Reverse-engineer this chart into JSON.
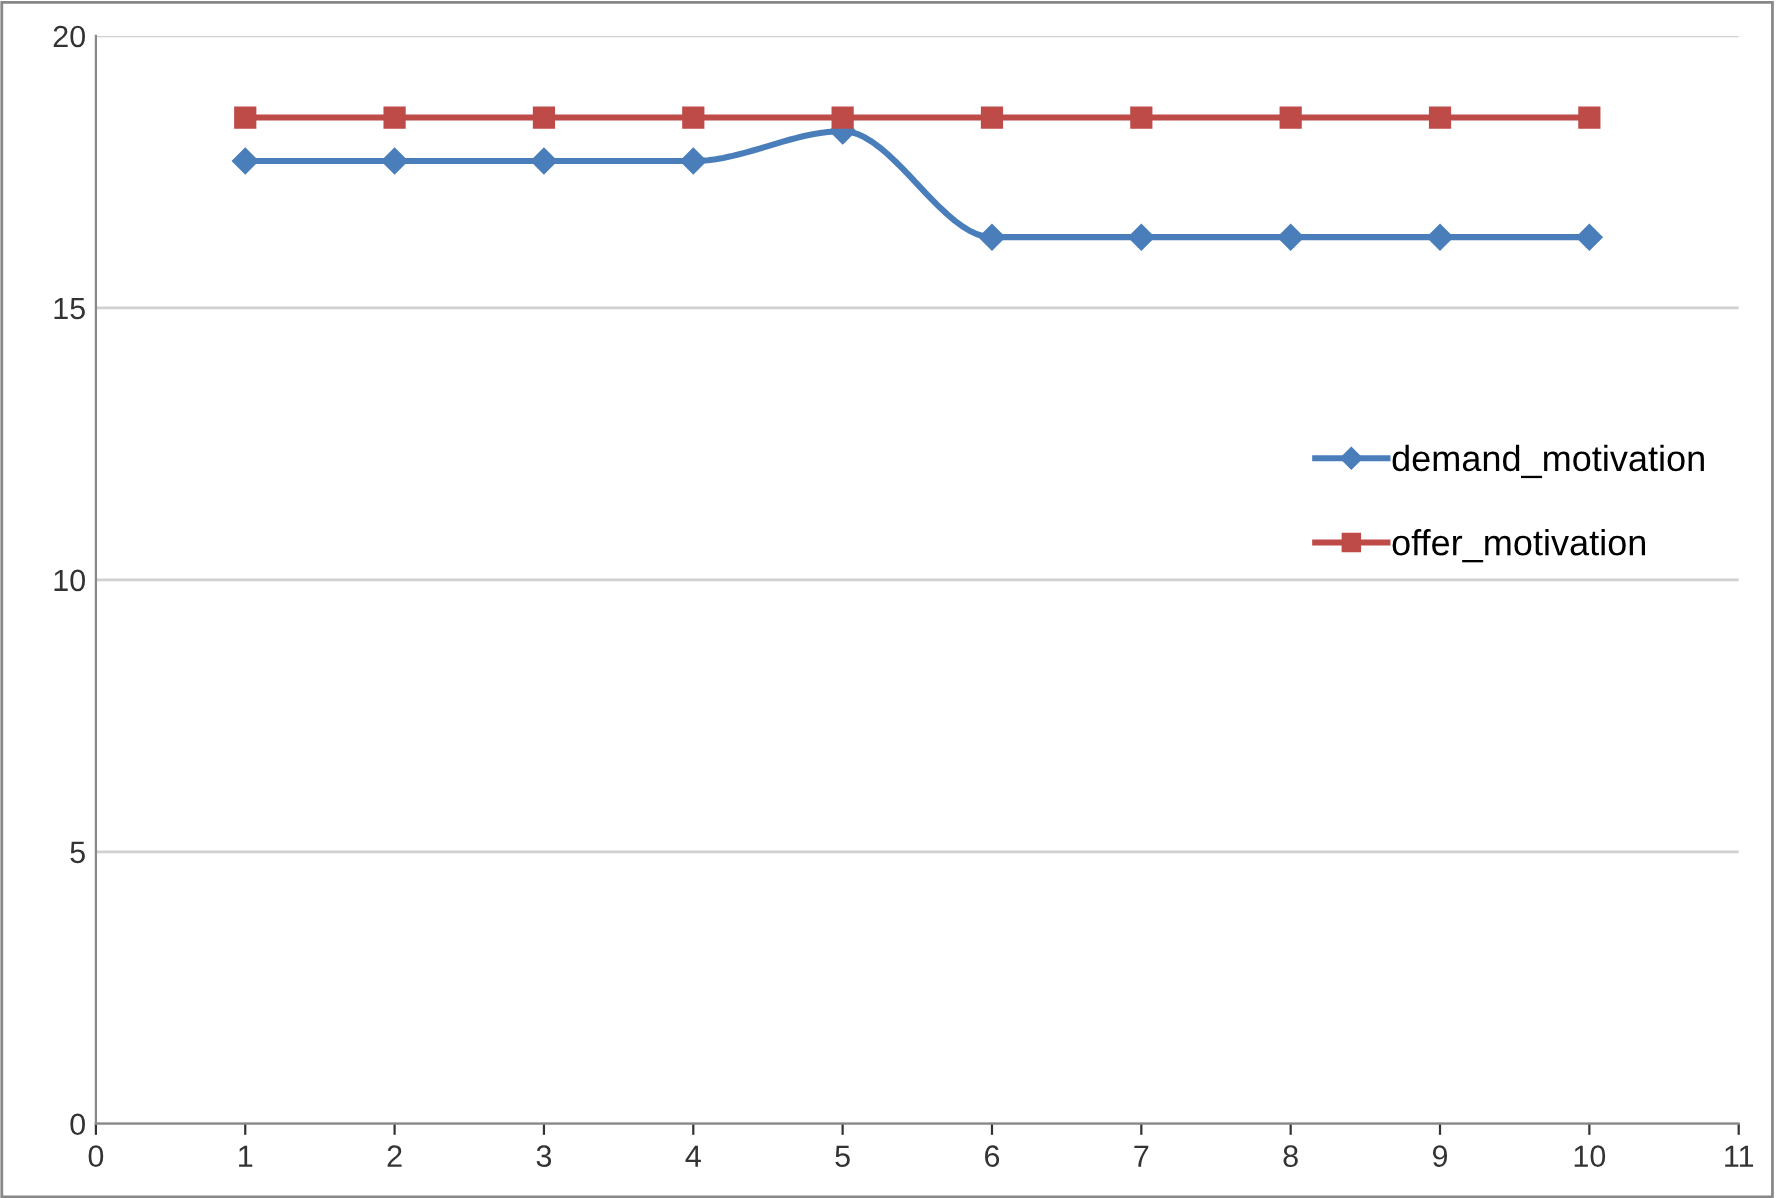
{
  "chart_data": {
    "type": "line",
    "x": [
      1,
      2,
      3,
      4,
      5,
      6,
      7,
      8,
      9,
      10
    ],
    "series": [
      {
        "name": "demand_motivation",
        "color": "#4a7ebb",
        "marker": "diamond",
        "values": [
          17.7,
          17.7,
          17.7,
          17.7,
          18.25,
          16.3,
          16.3,
          16.3,
          16.3,
          16.3
        ]
      },
      {
        "name": "offer_motivation",
        "color": "#be4b48",
        "marker": "square",
        "values": [
          18.5,
          18.5,
          18.5,
          18.5,
          18.5,
          18.5,
          18.5,
          18.5,
          18.5,
          18.5
        ]
      }
    ],
    "xlim": [
      0,
      11
    ],
    "xticks": [
      0,
      1,
      2,
      3,
      4,
      5,
      6,
      7,
      8,
      9,
      10,
      11
    ],
    "ylim": [
      0,
      20
    ],
    "yticks": [
      0,
      5,
      10,
      15,
      20
    ],
    "grid": "y",
    "legend": "right",
    "line_style": "solid"
  }
}
